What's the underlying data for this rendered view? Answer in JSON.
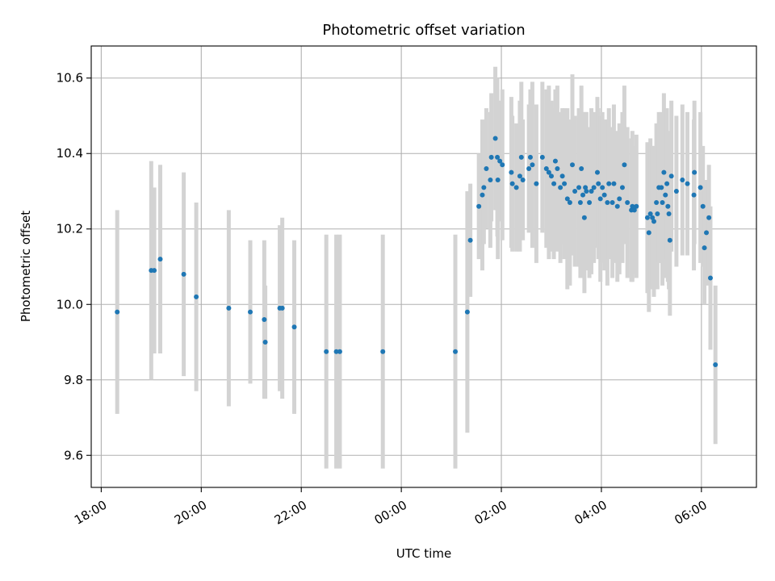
{
  "chart_data": {
    "type": "scatter",
    "title": "Photometric offset variation",
    "xlabel": "UTC time",
    "ylabel": "Photometric offset",
    "x_unit": "hours since 18:00 UTC (date axis)",
    "xlim": [
      -0.2,
      13.1
    ],
    "ylim": [
      9.515,
      10.685
    ],
    "grid": true,
    "x_ticks": [
      0,
      2,
      4,
      6,
      8,
      10,
      12
    ],
    "x_tick_labels": [
      "18:00",
      "20:00",
      "22:00",
      "00:00",
      "02:00",
      "04:00",
      "06:00"
    ],
    "y_ticks": [
      9.6,
      9.8,
      10.0,
      10.2,
      10.4,
      10.6
    ],
    "y_tick_labels": [
      "9.6",
      "9.8",
      "10.0",
      "10.2",
      "10.4",
      "10.6"
    ],
    "colors": {
      "point": "#1f77b4",
      "errorbar": "#d3d3d3",
      "grid": "#b0b0b0"
    },
    "series": [
      {
        "points": [
          [
            0.32,
            9.98,
            0.27
          ],
          [
            1.0,
            10.09,
            0.29
          ],
          [
            1.06,
            10.09,
            0.22
          ],
          [
            1.18,
            10.12,
            0.25
          ],
          [
            1.65,
            10.08,
            0.27
          ],
          [
            1.9,
            10.02,
            0.25
          ],
          [
            2.55,
            9.99,
            0.26
          ],
          [
            2.98,
            9.98,
            0.19
          ],
          [
            3.26,
            9.96,
            0.21
          ],
          [
            3.28,
            9.9,
            0.15
          ],
          [
            3.57,
            9.99,
            0.22
          ],
          [
            3.62,
            9.99,
            0.24
          ],
          [
            3.86,
            9.94,
            0.23
          ],
          [
            4.5,
            9.875,
            0.31
          ],
          [
            4.7,
            9.875,
            0.31
          ],
          [
            4.77,
            9.875,
            0.31
          ],
          [
            5.63,
            9.875,
            0.31
          ],
          [
            7.08,
            9.875,
            0.31
          ],
          [
            7.32,
            9.98,
            0.32
          ],
          [
            7.38,
            10.17,
            0.15
          ],
          [
            7.55,
            10.26,
            0.14
          ],
          [
            7.62,
            10.29,
            0.2
          ],
          [
            7.65,
            10.31,
            0.15
          ],
          [
            7.7,
            10.36,
            0.16
          ],
          [
            7.78,
            10.33,
            0.18
          ],
          [
            7.8,
            10.39,
            0.17
          ],
          [
            7.88,
            10.44,
            0.19
          ],
          [
            7.92,
            10.39,
            0.21
          ],
          [
            7.93,
            10.33,
            0.21
          ],
          [
            7.97,
            10.38,
            0.16
          ],
          [
            8.02,
            10.37,
            0.2
          ],
          [
            8.2,
            10.35,
            0.2
          ],
          [
            8.22,
            10.32,
            0.18
          ],
          [
            8.3,
            10.31,
            0.17
          ],
          [
            8.37,
            10.34,
            0.2
          ],
          [
            8.4,
            10.39,
            0.2
          ],
          [
            8.43,
            10.33,
            0.16
          ],
          [
            8.55,
            10.36,
            0.17
          ],
          [
            8.58,
            10.39,
            0.18
          ],
          [
            8.62,
            10.37,
            0.22
          ],
          [
            8.7,
            10.32,
            0.21
          ],
          [
            8.82,
            10.39,
            0.2
          ],
          [
            8.9,
            10.36,
            0.21
          ],
          [
            8.95,
            10.35,
            0.23
          ],
          [
            9.0,
            10.34,
            0.2
          ],
          [
            9.05,
            10.32,
            0.2
          ],
          [
            9.08,
            10.38,
            0.19
          ],
          [
            9.12,
            10.36,
            0.22
          ],
          [
            9.18,
            10.31,
            0.2
          ],
          [
            9.22,
            10.34,
            0.18
          ],
          [
            9.26,
            10.32,
            0.2
          ],
          [
            9.32,
            10.28,
            0.24
          ],
          [
            9.37,
            10.27,
            0.22
          ],
          [
            9.42,
            10.37,
            0.24
          ],
          [
            9.47,
            10.3,
            0.2
          ],
          [
            9.55,
            10.31,
            0.21
          ],
          [
            9.58,
            10.27,
            0.2
          ],
          [
            9.6,
            10.36,
            0.22
          ],
          [
            9.63,
            10.29,
            0.22
          ],
          [
            9.66,
            10.23,
            0.2
          ],
          [
            9.68,
            10.31,
            0.2
          ],
          [
            9.7,
            10.3,
            0.21
          ],
          [
            9.76,
            10.27,
            0.2
          ],
          [
            9.8,
            10.3,
            0.22
          ],
          [
            9.85,
            10.31,
            0.2
          ],
          [
            9.92,
            10.35,
            0.2
          ],
          [
            9.94,
            10.32,
            0.2
          ],
          [
            9.98,
            10.28,
            0.22
          ],
          [
            10.02,
            10.31,
            0.2
          ],
          [
            10.06,
            10.29,
            0.2
          ],
          [
            10.12,
            10.27,
            0.22
          ],
          [
            10.15,
            10.32,
            0.2
          ],
          [
            10.22,
            10.27,
            0.2
          ],
          [
            10.25,
            10.32,
            0.21
          ],
          [
            10.32,
            10.26,
            0.2
          ],
          [
            10.36,
            10.28,
            0.2
          ],
          [
            10.42,
            10.31,
            0.2
          ],
          [
            10.46,
            10.37,
            0.21
          ],
          [
            10.52,
            10.27,
            0.2
          ],
          [
            10.6,
            10.25,
            0.19
          ],
          [
            10.62,
            10.26,
            0.2
          ],
          [
            10.66,
            10.25,
            0.17
          ],
          [
            10.7,
            10.26,
            0.19
          ],
          [
            10.92,
            10.23,
            0.2
          ],
          [
            10.95,
            10.19,
            0.21
          ],
          [
            10.98,
            10.24,
            0.2
          ],
          [
            11.02,
            10.23,
            0.19
          ],
          [
            11.05,
            10.22,
            0.2
          ],
          [
            11.1,
            10.27,
            0.21
          ],
          [
            11.12,
            10.24,
            0.2
          ],
          [
            11.15,
            10.31,
            0.2
          ],
          [
            11.2,
            10.31,
            0.2
          ],
          [
            11.22,
            10.27,
            0.22
          ],
          [
            11.25,
            10.35,
            0.21
          ],
          [
            11.28,
            10.29,
            0.22
          ],
          [
            11.31,
            10.32,
            0.2
          ],
          [
            11.33,
            10.26,
            0.2
          ],
          [
            11.35,
            10.24,
            0.2
          ],
          [
            11.37,
            10.17,
            0.2
          ],
          [
            11.4,
            10.34,
            0.2
          ],
          [
            11.5,
            10.3,
            0.2
          ],
          [
            11.62,
            10.33,
            0.2
          ],
          [
            11.72,
            10.32,
            0.19
          ],
          [
            11.85,
            10.29,
            0.2
          ],
          [
            11.86,
            10.35,
            0.19
          ],
          [
            11.98,
            10.31,
            0.2
          ],
          [
            12.03,
            10.26,
            0.16
          ],
          [
            12.06,
            10.15,
            0.15
          ],
          [
            12.1,
            10.19,
            0.14
          ],
          [
            12.15,
            10.23,
            0.14
          ],
          [
            12.18,
            10.07,
            0.19
          ],
          [
            12.28,
            9.84,
            0.21
          ]
        ]
      }
    ]
  }
}
